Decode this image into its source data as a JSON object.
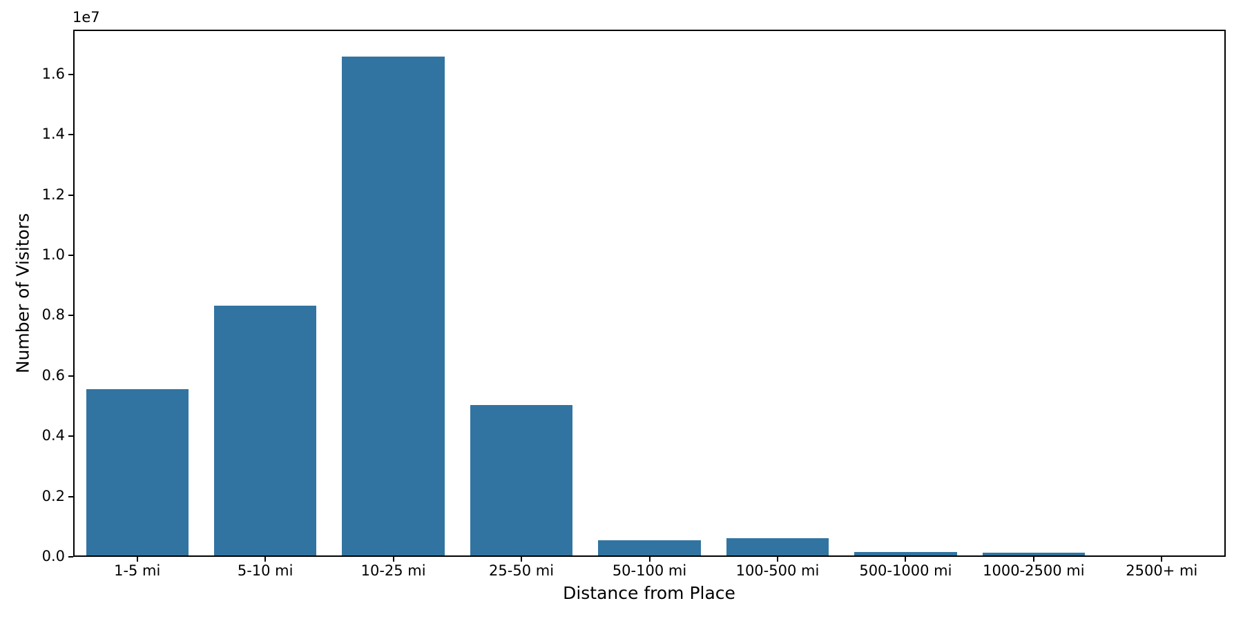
{
  "chart_data": {
    "type": "bar",
    "title": "",
    "xlabel": "Distance from Place",
    "ylabel": "Number of Visitors",
    "y_offset_text": "1e7",
    "categories": [
      "1-5 mi",
      "5-10 mi",
      "10-25 mi",
      "25-50 mi",
      "50-100 mi",
      "100-500 mi",
      "500-1000 mi",
      "1000-2500 mi",
      "2500+ mi"
    ],
    "values": [
      5550000,
      8330000,
      16580000,
      5030000,
      540000,
      620000,
      165000,
      140000,
      20000
    ],
    "bar_color": "#3274a1",
    "axis_color": "#000000",
    "background_color": "#ffffff",
    "ylim": [
      0,
      17480000
    ],
    "yticks": {
      "values": [
        0,
        2000000,
        4000000,
        6000000,
        8000000,
        10000000,
        12000000,
        14000000,
        16000000
      ],
      "labels": [
        "0.0",
        "0.2",
        "0.4",
        "0.6",
        "0.8",
        "1.0",
        "1.2",
        "1.4",
        "1.6"
      ]
    },
    "bar_width_fraction": 0.8,
    "grid": false,
    "legend": null
  }
}
